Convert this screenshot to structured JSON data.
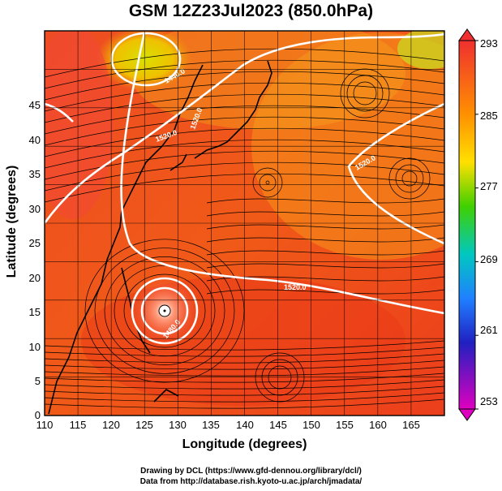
{
  "title": "GSM 12Z23Jul2023 (850.0hPa)",
  "x_axis": {
    "label": "Longitude (degrees)",
    "ticks": [
      "110",
      "115",
      "120",
      "125",
      "130",
      "135",
      "140",
      "145",
      "150",
      "155",
      "160",
      "165"
    ]
  },
  "y_axis": {
    "label": "Latitude  (degrees)",
    "ticks": [
      "0",
      "5",
      "10",
      "15",
      "20",
      "25",
      "30",
      "35",
      "40",
      "45"
    ]
  },
  "colorbar": {
    "ticks": [
      "293",
      "285",
      "277",
      "269",
      "261",
      "253"
    ],
    "colors": [
      "#f03030",
      "#ff8c00",
      "#ffe000",
      "#40d000",
      "#00c0c0",
      "#2080ff",
      "#2020c0",
      "#e000c0"
    ]
  },
  "contour_labels": [
    "1520.0",
    "1520.0",
    "1520.0",
    "1520.0",
    "1480.0",
    "1440.0"
  ],
  "credits": [
    "Drawing by DCL (https://www.gfd-dennou.org/library/dcl/)",
    "Data from http://database.rish.kyoto-u.ac.jp/arch/jmadata/"
  ],
  "chart_data": {
    "type": "heatmap",
    "title": "GSM 12Z23Jul2023 (850.0hPa)",
    "xlabel": "Longitude (degrees)",
    "ylabel": "Latitude  (degrees)",
    "xlim": [
      110,
      170
    ],
    "ylim": [
      0,
      50
    ],
    "color_range": [
      253,
      293
    ],
    "typhoon_center": {
      "lon": 127.5,
      "lat": 15
    },
    "high_pressure_center": {
      "lon": 125,
      "lat": 45
    }
  }
}
